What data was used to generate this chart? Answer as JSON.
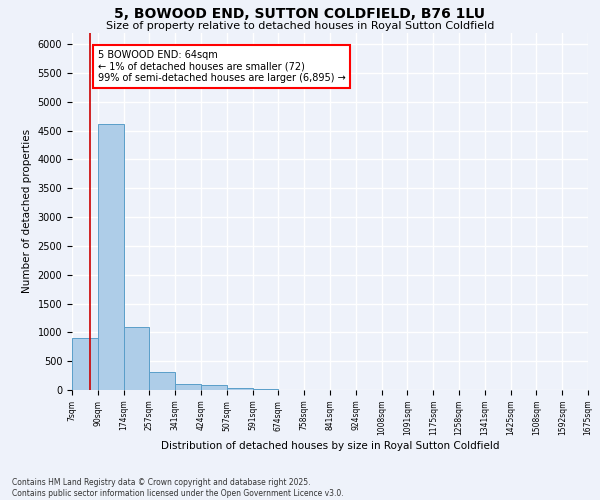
{
  "title": "5, BOWOOD END, SUTTON COLDFIELD, B76 1LU",
  "subtitle": "Size of property relative to detached houses in Royal Sutton Coldfield",
  "xlabel": "Distribution of detached houses by size in Royal Sutton Coldfield",
  "ylabel": "Number of detached properties",
  "footer_line1": "Contains HM Land Registry data © Crown copyright and database right 2025.",
  "footer_line2": "Contains public sector information licensed under the Open Government Licence v3.0.",
  "annotation_line1": "5 BOWOOD END: 64sqm",
  "annotation_line2": "← 1% of detached houses are smaller (72)",
  "annotation_line3": "99% of semi-detached houses are larger (6,895) →",
  "property_size": 64,
  "bin_edges": [
    7,
    90,
    174,
    257,
    341,
    424,
    507,
    591,
    674,
    758,
    841,
    924,
    1008,
    1091,
    1175,
    1258,
    1341,
    1425,
    1508,
    1592,
    1675
  ],
  "bin_labels": [
    "7sqm",
    "90sqm",
    "174sqm",
    "257sqm",
    "341sqm",
    "424sqm",
    "507sqm",
    "591sqm",
    "674sqm",
    "758sqm",
    "841sqm",
    "924sqm",
    "1008sqm",
    "1091sqm",
    "1175sqm",
    "1258sqm",
    "1341sqm",
    "1425sqm",
    "1508sqm",
    "1592sqm",
    "1675sqm"
  ],
  "counts": [
    900,
    4620,
    1090,
    305,
    100,
    80,
    30,
    15,
    8,
    5,
    3,
    2,
    1,
    1,
    1,
    0,
    0,
    0,
    0,
    0
  ],
  "bar_color": "#aecde8",
  "bar_edge_color": "#5a9ec9",
  "red_line_color": "#cc0000",
  "background_color": "#eef2fa",
  "grid_color": "#ffffff",
  "ylim": [
    0,
    6200
  ],
  "yticks": [
    0,
    500,
    1000,
    1500,
    2000,
    2500,
    3000,
    3500,
    4000,
    4500,
    5000,
    5500,
    6000
  ]
}
